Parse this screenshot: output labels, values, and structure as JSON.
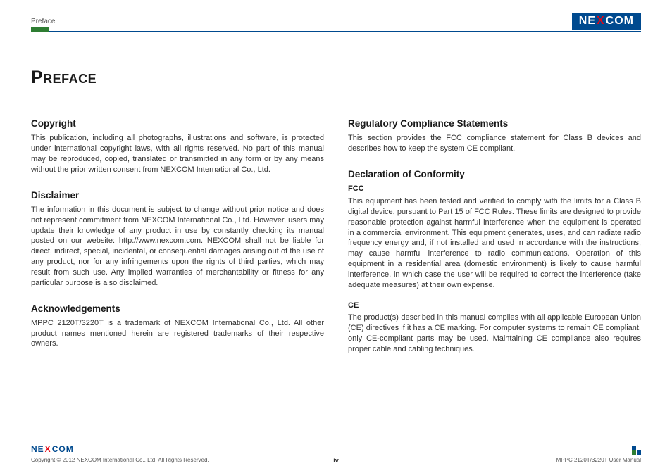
{
  "brand": {
    "pre": "NE",
    "mid": "X",
    "post": "COM"
  },
  "header": {
    "section_label": "Preface"
  },
  "title": "Preface",
  "left": {
    "copyright": {
      "heading": "Copyright",
      "body": "This publication, including all photographs, illustrations and software, is protected under international copyright laws, with all rights reserved. No part of this manual may be reproduced, copied, translated or transmitted in any form or by any means without the prior written consent from NEXCOM International Co., Ltd."
    },
    "disclaimer": {
      "heading": "Disclaimer",
      "body": "The information in this document is subject to change without prior notice and does not represent commitment from NEXCOM International Co., Ltd. However, users may update their knowledge of any product in use by constantly checking its manual posted on our website: http://www.nexcom.com. NEXCOM shall not be liable for direct, indirect, special, incidental, or consequential damages arising out of the use of any product, nor for any infringements upon the rights of third parties, which may result from such use. Any implied warranties of merchantability or fitness for any particular purpose is also disclaimed."
    },
    "ack": {
      "heading": "Acknowledgements",
      "body": "MPPC 2120T/3220T is a trademark of NEXCOM International Co., Ltd. All other product names mentioned herein are registered trademarks of their respective owners."
    }
  },
  "right": {
    "reg": {
      "heading": "Regulatory Compliance Statements",
      "body": "This section provides the FCC compliance statement for Class B devices and describes how to keep the system CE compliant."
    },
    "decl": {
      "heading": "Declaration of Conformity",
      "fcc_label": "FCC",
      "fcc_body": "This equipment has been tested and verified to comply with the limits for a Class B digital device, pursuant to Part 15 of FCC Rules. These limits are designed to provide reasonable protection against harmful interference when the equipment is operated in a commercial environment. This equipment generates, uses, and can radiate radio frequency energy and, if not installed and used in accordance with the instructions, may cause harmful interference to radio communications. Operation of this equipment in a residential area (domestic environment) is likely to cause harmful interference, in which case the user will be required to correct the interference (take adequate measures) at their own expense.",
      "ce_label": "CE",
      "ce_body": "The product(s) described in this manual complies with all applicable European Union (CE) directives if it has a CE marking. For computer systems to remain CE compliant, only CE-compliant parts may be used. Maintaining CE compliance also requires proper cable and cabling techniques."
    }
  },
  "footer": {
    "copyright": "Copyright © 2012 NEXCOM International Co., Ltd. All Rights Reserved.",
    "page": "iv",
    "doc": "MPPC 2120T/3220T User Manual"
  },
  "colors": {
    "brand_blue": "#004a8f",
    "brand_red": "#e30613",
    "accent_green": "#2e7d32",
    "text": "#333333",
    "background": "#ffffff"
  }
}
